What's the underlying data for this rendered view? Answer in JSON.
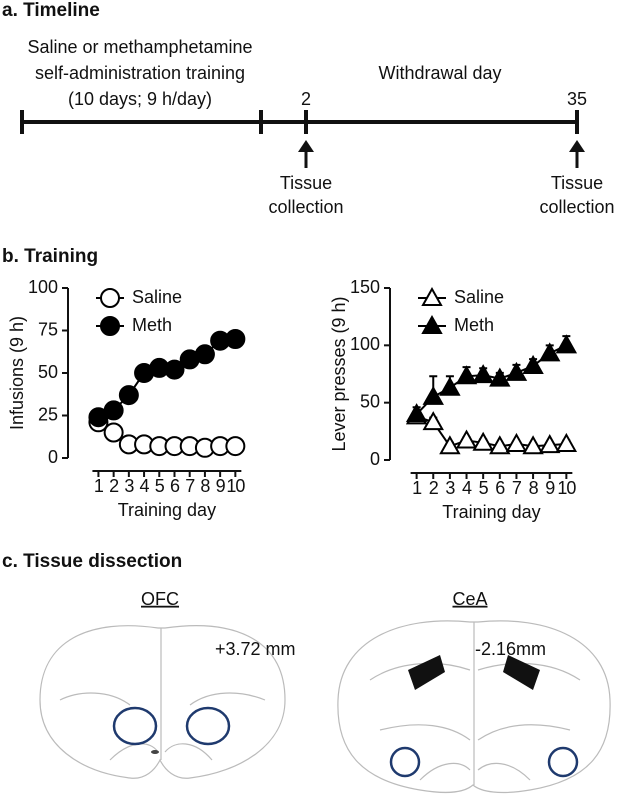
{
  "timeline": {
    "title": "a. Timeline",
    "phase_label": "Saline or methamphetamine",
    "phase_label_line2": "self-administration training",
    "phase_detail": "(10 days; 9 h/day)",
    "withdrawal_label": "Withdrawal day",
    "events": [
      {
        "day": "2",
        "label_line1": "Tissue",
        "label_line2": "collection"
      },
      {
        "day": "35",
        "label_line1": "Tissue",
        "label_line2": "collection"
      }
    ]
  },
  "training": {
    "title": "b. Training"
  },
  "chart_data": [
    {
      "type": "line",
      "xlabel": "Training day",
      "ylabel": "Infusions (9 h)",
      "x": [
        1,
        2,
        3,
        4,
        5,
        6,
        7,
        8,
        9,
        10
      ],
      "xticks": [
        1,
        2,
        3,
        4,
        5,
        6,
        7,
        8,
        9,
        10
      ],
      "xlim": [
        -1,
        10.7
      ],
      "ylim": [
        0,
        100
      ],
      "yticks": [
        0,
        25,
        50,
        75,
        100
      ],
      "legend": "upper left",
      "series": [
        {
          "name": "Saline",
          "color": "#000000",
          "marker": "circle",
          "filled": false,
          "values": [
            21,
            15,
            8,
            8,
            7,
            7,
            7,
            6,
            7,
            7
          ]
        },
        {
          "name": "Meth",
          "color": "#000000",
          "marker": "circle",
          "filled": true,
          "values": [
            24,
            28,
            37,
            50,
            53,
            52,
            58,
            61,
            69,
            70
          ],
          "errors": [
            2,
            2,
            2,
            2,
            2,
            3,
            4,
            4,
            2,
            2
          ]
        }
      ]
    },
    {
      "type": "line",
      "xlabel": "Training day",
      "ylabel": "Lever presses (9 h)",
      "x": [
        1,
        2,
        3,
        4,
        5,
        6,
        7,
        8,
        9,
        10
      ],
      "xticks": [
        1,
        2,
        3,
        4,
        5,
        6,
        7,
        8,
        9,
        10
      ],
      "xlim": [
        -0.6,
        10.7
      ],
      "ylim": [
        0,
        150
      ],
      "yticks": [
        0,
        50,
        100,
        150
      ],
      "legend": "upper left",
      "series": [
        {
          "name": "Saline",
          "color": "#000000",
          "marker": "triangle",
          "filled": false,
          "values": [
            38,
            33,
            12,
            17,
            15,
            12,
            14,
            12,
            13,
            14
          ],
          "errors": [
            3,
            4,
            3,
            3,
            3,
            2,
            2,
            2,
            2,
            3
          ]
        },
        {
          "name": "Meth",
          "color": "#000000",
          "marker": "triangle",
          "filled": true,
          "values": [
            40,
            55,
            63,
            73,
            74,
            71,
            76,
            82,
            93,
            100
          ],
          "errors": [
            6,
            18,
            10,
            8,
            6,
            5,
            7,
            6,
            7,
            8
          ]
        }
      ]
    }
  ],
  "dissection": {
    "title": "c. Tissue dissection",
    "sections": [
      {
        "region": "OFC",
        "coordinate": "+3.72 mm"
      },
      {
        "region": "CeA",
        "coordinate": "-2.16mm"
      }
    ]
  }
}
